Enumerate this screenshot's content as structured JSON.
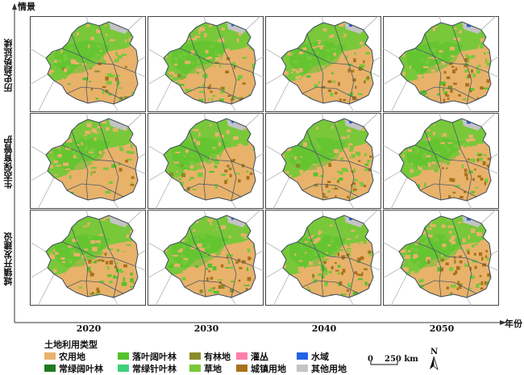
{
  "axes": {
    "y_label": "情景",
    "x_label": "年份"
  },
  "rows": [
    {
      "label": "历史趋势延续"
    },
    {
      "label": "生态保育管护"
    },
    {
      "label": "城镇开发建设"
    }
  ],
  "columns": [
    {
      "label": "2020"
    },
    {
      "label": "2030"
    },
    {
      "label": "2040"
    },
    {
      "label": "2050"
    }
  ],
  "legend": {
    "title": "土地利用类型",
    "items": [
      {
        "label": "农用地",
        "color": "#e8b26a"
      },
      {
        "label": "落叶阔叶林",
        "color": "#55c22a"
      },
      {
        "label": "有林地",
        "color": "#8a8c2a"
      },
      {
        "label": "灌丛",
        "color": "#ff7fa8"
      },
      {
        "label": "水域",
        "color": "#2563e6"
      },
      {
        "label": "常绿阔叶林",
        "color": "#1f7a1f"
      },
      {
        "label": "常绿针叶林",
        "color": "#3cd07a"
      },
      {
        "label": "草地",
        "color": "#78c83a"
      },
      {
        "label": "城镇用地",
        "color": "#a9711a"
      },
      {
        "label": "其他用地",
        "color": "#c4c4c4"
      }
    ]
  },
  "scale_bar": {
    "zero": "0",
    "distance": "250 km"
  },
  "north_arrow": {
    "label": "N"
  }
}
